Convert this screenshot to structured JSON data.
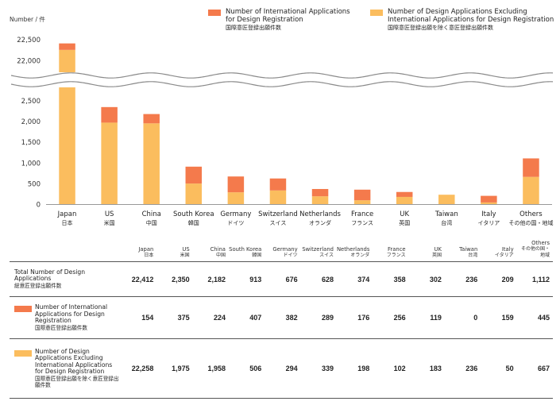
{
  "colors": {
    "international": "#f47a4c",
    "excluding": "#fbbd5e",
    "axis": "#999999"
  },
  "unit_label": "Number / 件",
  "legend": [
    {
      "key": "international",
      "en": [
        "Number of International Applications",
        "for Design Registration"
      ],
      "jp": "国際意匠登録出願件数"
    },
    {
      "key": "excluding",
      "en": [
        "Number of Design Applications Excluding",
        "International Applications for Design Registration"
      ],
      "jp": "国際意匠登録出願を除く意匠登録出願件数"
    }
  ],
  "chart_data": {
    "type": "bar",
    "stacked": true,
    "broken_axis": {
      "lower": [
        0,
        2500
      ],
      "upper": [
        22000,
        22500
      ]
    },
    "yticks_lower": [
      "0",
      "500",
      "1,000",
      "1,500",
      "2,000",
      "2,500"
    ],
    "yticks_upper": [
      "22,000",
      "22,500"
    ],
    "categories": [
      {
        "en": "Japan",
        "jp": "日本"
      },
      {
        "en": "US",
        "jp": "米国"
      },
      {
        "en": "China",
        "jp": "中国"
      },
      {
        "en": "South Korea",
        "jp": "韓国"
      },
      {
        "en": "Germany",
        "jp": "ドイツ"
      },
      {
        "en": "Switzerland",
        "jp": "スイス"
      },
      {
        "en": "Netherlands",
        "jp": "オランダ"
      },
      {
        "en": "France",
        "jp": "フランス"
      },
      {
        "en": "UK",
        "jp": "英国"
      },
      {
        "en": "Taiwan",
        "jp": "台湾"
      },
      {
        "en": "Italy",
        "jp": "イタリア"
      },
      {
        "en": "Others",
        "jp": "その他の国・地域"
      }
    ],
    "series": [
      {
        "name": "Number of Design Applications Excluding International Applications for Design Registration",
        "key": "excluding",
        "values": [
          22258,
          1975,
          1958,
          506,
          294,
          339,
          198,
          102,
          183,
          236,
          50,
          667
        ]
      },
      {
        "name": "Number of International Applications for Design Registration",
        "key": "international",
        "values": [
          154,
          375,
          224,
          407,
          382,
          289,
          176,
          256,
          119,
          0,
          159,
          445
        ]
      }
    ]
  },
  "table": {
    "header": [
      {
        "en": "Japan",
        "jp": "日本"
      },
      {
        "en": "US",
        "jp": "米国"
      },
      {
        "en": "China",
        "jp": "中国"
      },
      {
        "en": "South Korea",
        "jp": "韓国"
      },
      {
        "en": "Germany",
        "jp": "ドイツ"
      },
      {
        "en": "Switzerland",
        "jp": "スイス"
      },
      {
        "en": "Netherlands",
        "jp": "オランダ"
      },
      {
        "en": "France",
        "jp": "フランス"
      },
      {
        "en": "UK",
        "jp": "英国"
      },
      {
        "en": "Taiwan",
        "jp": "台湾"
      },
      {
        "en": "Italy",
        "jp": "イタリア"
      },
      {
        "en": "Others",
        "jp": "その他の国・地域"
      }
    ],
    "rows": [
      {
        "label": "Total Number of Design Applications",
        "jp": "総意匠登録出願件数",
        "values": [
          "22,412",
          "2,350",
          "2,182",
          "913",
          "676",
          "628",
          "374",
          "358",
          "302",
          "236",
          "209",
          "1,112"
        ]
      },
      {
        "label": "Number of International Applications for Design Registration",
        "jp": "国際意匠登録出願件数",
        "values": [
          "154",
          "375",
          "224",
          "407",
          "382",
          "289",
          "176",
          "256",
          "119",
          "0",
          "159",
          "445"
        ]
      },
      {
        "label": "Number of Design Applications Excluding International Applications for Design Registration",
        "jp": "国際意匠登録出願を除く意匠登録出願件数",
        "values": [
          "22,258",
          "1,975",
          "1,958",
          "506",
          "294",
          "339",
          "198",
          "102",
          "183",
          "236",
          "50",
          "667"
        ]
      }
    ]
  }
}
